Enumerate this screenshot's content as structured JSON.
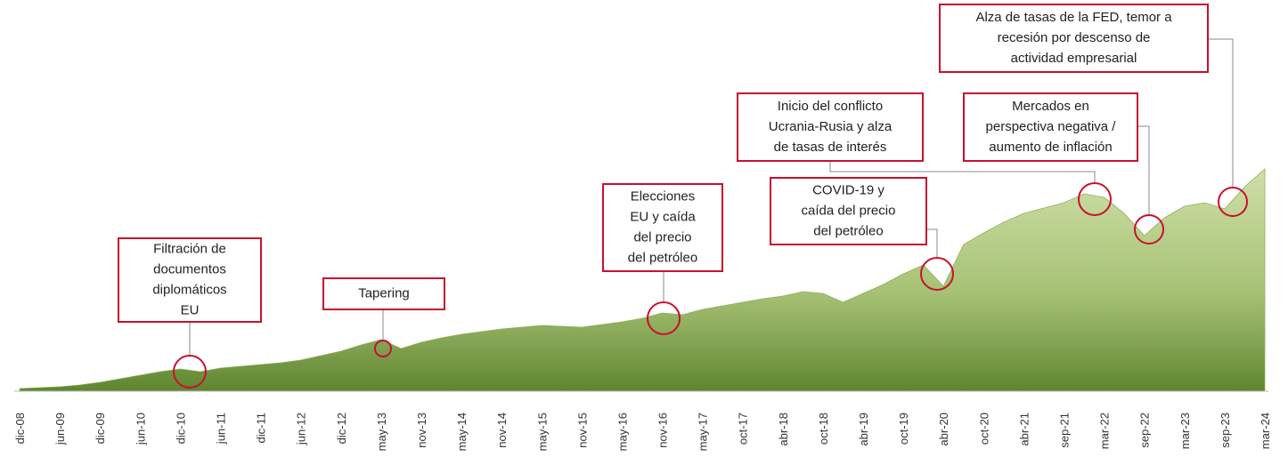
{
  "chart_data": {
    "type": "area",
    "categories": [
      "dic-08",
      null,
      "jun-09",
      null,
      "dic-09",
      null,
      "jun-10",
      null,
      "dic-10",
      null,
      "jun-11",
      null,
      "dic-11",
      null,
      "jun-12",
      null,
      "dic-12",
      null,
      "may-13",
      null,
      "nov-13",
      null,
      "may-14",
      null,
      "nov-14",
      null,
      "may-15",
      null,
      "nov-15",
      null,
      "may-16",
      null,
      "nov-16",
      null,
      "may-17",
      null,
      "oct-17",
      null,
      "abr-18",
      null,
      "oct-18",
      null,
      "abr-19",
      null,
      "oct-19",
      null,
      "abr-20",
      null,
      "oct-20",
      null,
      "abr-21",
      null,
      "sep-21",
      null,
      "mar-22",
      null,
      "sep-22",
      null,
      "mar-23",
      null,
      "sep-23",
      null,
      "mar-24"
    ],
    "values": [
      3,
      4,
      5,
      7,
      10,
      14,
      18,
      22,
      25,
      22,
      26,
      28,
      30,
      32,
      35,
      40,
      45,
      52,
      58,
      48,
      55,
      60,
      64,
      67,
      70,
      72,
      74,
      73,
      72,
      75,
      78,
      82,
      88,
      86,
      92,
      96,
      100,
      104,
      107,
      112,
      110,
      100,
      110,
      120,
      132,
      142,
      118,
      165,
      178,
      190,
      200,
      206,
      212,
      222,
      218,
      200,
      175,
      195,
      208,
      212,
      205,
      230,
      250
    ],
    "color": "#8fb05a",
    "ylim": [
      0,
      260
    ],
    "annotations": [
      {
        "lines": [
          "Filtración de",
          "documentos",
          "diplomáticos",
          "EU"
        ]
      },
      {
        "lines": [
          "Tapering"
        ]
      },
      {
        "lines": [
          "Elecciones",
          "EU y caída",
          "del precio",
          "del petróleo"
        ]
      },
      {
        "lines": [
          "COVID-19 y",
          "caída del precio",
          "del petróleo"
        ]
      },
      {
        "lines": [
          "Inicio del conflicto",
          "Ucrania-Rusia y alza",
          "de tasas de interés"
        ]
      },
      {
        "lines": [
          "Mercados en",
          "perspectiva negativa /",
          "aumento de inflación"
        ]
      },
      {
        "lines": [
          "Alza de tasas de la FED, temor a",
          "recesión por descenso de",
          "actividad empresarial"
        ]
      }
    ]
  }
}
